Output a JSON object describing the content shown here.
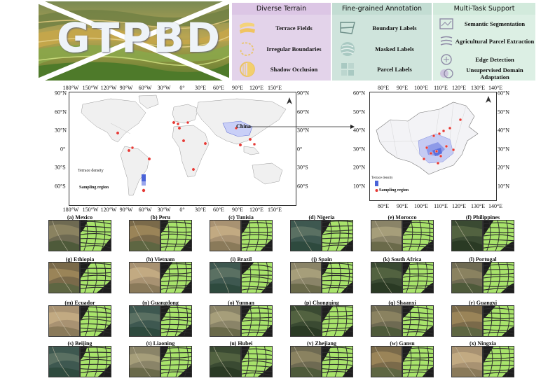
{
  "banner": {
    "logo_text": "GTPBD",
    "panels": [
      {
        "title": "Diverse Terrain",
        "bg": "#e3d3ea",
        "head_bg": "#dcc6e5",
        "items": [
          "Terrace Fields",
          "Irregular Boundaries",
          "Shadow Occlusion"
        ],
        "icons": [
          "terrace-fields-icon",
          "irregular-boundaries-icon",
          "shadow-occlusion-icon"
        ]
      },
      {
        "title": "Fine-grained Annotation",
        "bg": "#cfe4dc",
        "head_bg": "#c3ddd3",
        "items": [
          "Boundary Labels",
          "Masked Labels",
          "Parcel Labels"
        ],
        "icons": [
          "boundary-labels-icon",
          "masked-labels-icon",
          "parcel-labels-icon"
        ]
      },
      {
        "title": "Multi-Task Support",
        "bg": "#dcefe4",
        "head_bg": "#d2eadc",
        "items": [
          "Semantic Segmentation",
          "Agricultural Parcel Extraction",
          "Edge Detection",
          "Unsupervised Domain Adaptation"
        ],
        "icons": [
          "semantic-segmentation-icon",
          "parcel-extraction-icon",
          "edge-detection-icon",
          "domain-adaptation-icon"
        ]
      }
    ]
  },
  "world_map": {
    "lon_labels": [
      "180°W",
      "150°W",
      "120°W",
      "90°W",
      "60°W",
      "30°W",
      "0°",
      "30°E",
      "60°E",
      "90°E",
      "120°E",
      "150°E"
    ],
    "lat_labels_left": [
      "90°N",
      "60°N",
      "30°N",
      "0°",
      "30°S",
      "60°S"
    ],
    "lat_labels_right": [
      "90°N",
      "60°N",
      "30°N",
      "0°",
      "30°S",
      "60°S"
    ],
    "china_label": "China",
    "legend_density": "Terrace density",
    "legend_sampling": "Sampling region"
  },
  "china_map": {
    "lon_labels": [
      "80°E",
      "90°E",
      "100°E",
      "110°E",
      "120°E",
      "130°E",
      "140°E"
    ],
    "lat_labels": [
      "60°N",
      "50°N",
      "40°N",
      "30°N",
      "20°N",
      "10°N"
    ],
    "legend_density": "Terrace density",
    "legend_sampling": "Sampling region"
  },
  "samples": [
    "(a) Mexico",
    "(b) Peru",
    "(c) Tunisia",
    "(d) Nigeria",
    "(e) Morocco",
    "(f) Philippines",
    "(g) Ethiopia",
    "(h) Vietnam",
    "(i) Brazil",
    "(j) Spain",
    "(k) South Africa",
    "(l) Portugal",
    "(m) Ecuador",
    "(n) Guangdong",
    "(o) Yunnan",
    "(p) Chongqing",
    "(q) Shaanxi",
    "(r) Guangxi",
    "(s) Beijing",
    "(t) Liaoning",
    "(u) Hubei",
    "(v) Zhejiang",
    "(w) Gansu",
    "(x) Ningxia"
  ],
  "colors": {
    "mask_green": "#a8e36b",
    "mask_line": "#2b2b2b",
    "sample_marker": "#e53935",
    "density": "#4a63d8"
  }
}
